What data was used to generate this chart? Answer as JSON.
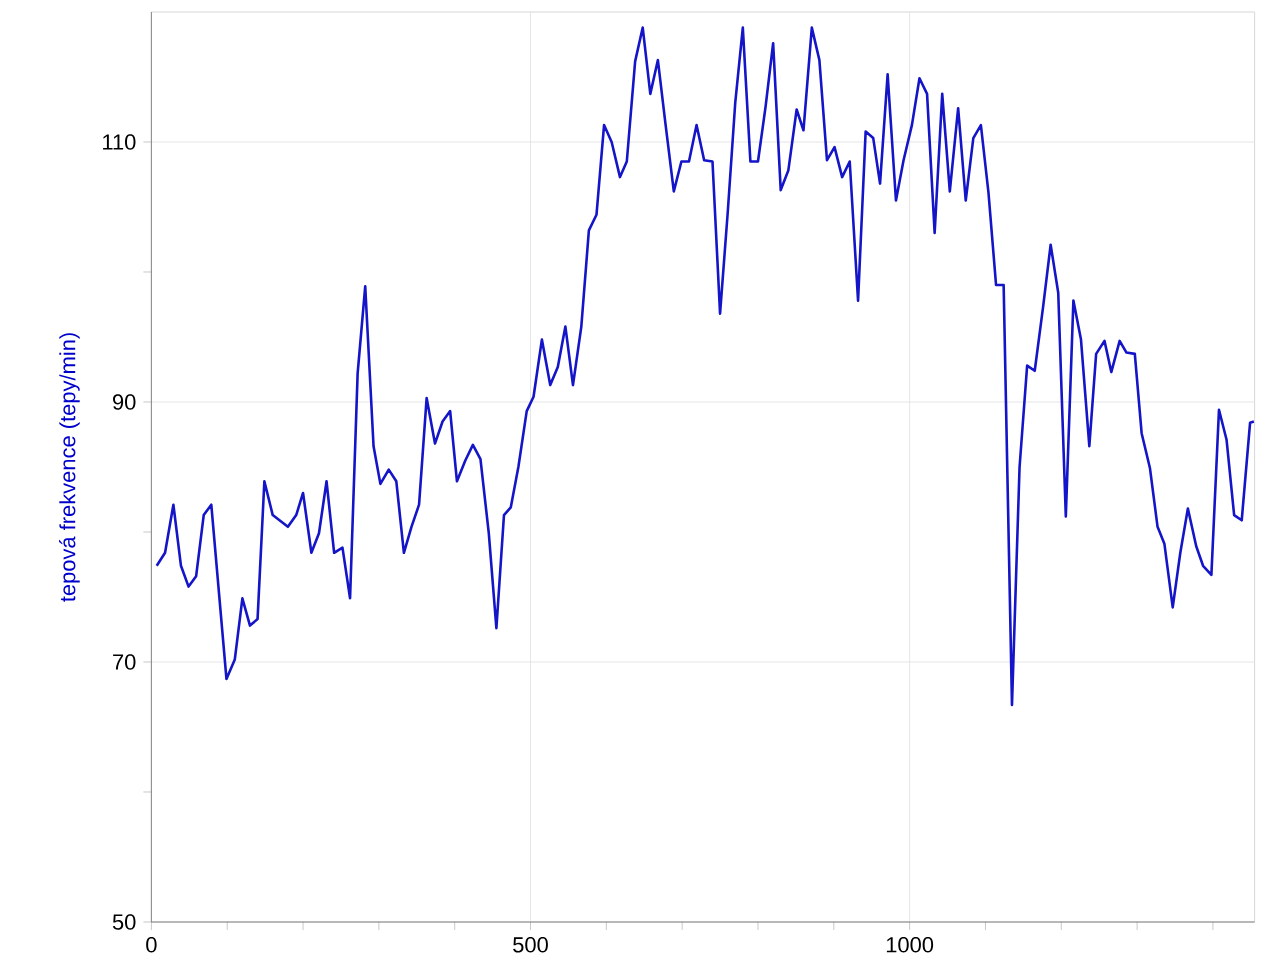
{
  "chart_data": {
    "type": "line",
    "ylabel": "tepová frekvence (tepy/min)",
    "color": "#1414c8",
    "grid": true,
    "marker": "none",
    "line_style": "solid",
    "xlim": [
      0,
      1455
    ],
    "ylim": [
      50,
      120
    ],
    "xticks": [
      0,
      {
        "value": 100,
        "label": null
      },
      {
        "value": 200,
        "label": null
      },
      {
        "value": 300,
        "label": null
      },
      {
        "value": 400,
        "label": null
      },
      500,
      {
        "value": 600,
        "label": null
      },
      {
        "value": 700,
        "label": null
      },
      {
        "value": 800,
        "label": null
      },
      {
        "value": 900,
        "label": null
      },
      1000,
      {
        "value": 1100,
        "label": null
      },
      {
        "value": 1200,
        "label": null
      },
      {
        "value": 1300,
        "label": null
      },
      {
        "value": 1400,
        "label": null
      }
    ],
    "yticks": [
      50,
      {
        "value": 60,
        "label": null
      },
      70,
      {
        "value": 80,
        "label": null
      },
      90,
      {
        "value": 100,
        "label": null
      },
      110
    ],
    "x": [
      7,
      18,
      29,
      39,
      49,
      59,
      69,
      79,
      99,
      110,
      120,
      130,
      140,
      149,
      160,
      180,
      191,
      200,
      211,
      221,
      231,
      241,
      252,
      262,
      272,
      282,
      293,
      302,
      313,
      323,
      333,
      343,
      353,
      363,
      374,
      384,
      394,
      403,
      414,
      424,
      434,
      445,
      455,
      465,
      474,
      484,
      495,
      504,
      515,
      526,
      536,
      546,
      556,
      567,
      577,
      587,
      597,
      607,
      618,
      627,
      638,
      648,
      658,
      668,
      678,
      689,
      699,
      709,
      719,
      729,
      740,
      750,
      760,
      770,
      780,
      790,
      800,
      810,
      820,
      830,
      840,
      851,
      860,
      871,
      881,
      891,
      901,
      911,
      921,
      932,
      942,
      952,
      961,
      971,
      982,
      992,
      1003,
      1013,
      1023,
      1033,
      1043,
      1053,
      1064,
      1074,
      1084,
      1094,
      1104,
      1114,
      1124,
      1135,
      1145,
      1155,
      1165,
      1176,
      1186,
      1196,
      1206,
      1216,
      1226,
      1237,
      1246,
      1257,
      1266,
      1277,
      1286,
      1297,
      1306,
      1317,
      1327,
      1336,
      1347,
      1357,
      1367,
      1378,
      1387,
      1398,
      1408,
      1418,
      1428,
      1438,
      1449,
      1454
    ],
    "values": [
      77.4,
      78.4,
      82.1,
      77.4,
      75.8,
      76.6,
      81.3,
      82.1,
      68.7,
      70.2,
      74.9,
      72.8,
      73.3,
      83.9,
      81.3,
      80.4,
      81.3,
      83.0,
      78.4,
      79.9,
      83.9,
      78.4,
      78.8,
      74.9,
      92.2,
      98.9,
      86.6,
      83.7,
      84.8,
      83.9,
      78.4,
      80.4,
      82.1,
      90.3,
      86.8,
      88.5,
      89.3,
      83.9,
      85.5,
      86.7,
      85.6,
      79.9,
      72.6,
      81.3,
      81.9,
      85.0,
      89.3,
      90.4,
      94.8,
      91.3,
      92.7,
      95.8,
      91.3,
      95.8,
      103.2,
      104.4,
      111.3,
      110.0,
      107.3,
      108.5,
      116.2,
      118.8,
      113.7,
      116.3,
      111.4,
      106.2,
      108.5,
      108.5,
      111.3,
      108.6,
      108.5,
      96.8,
      104.5,
      113.0,
      118.8,
      108.5,
      108.5,
      112.7,
      117.6,
      106.3,
      107.8,
      112.5,
      110.9,
      118.8,
      116.3,
      108.6,
      109.6,
      107.3,
      108.5,
      97.8,
      110.8,
      110.3,
      106.8,
      115.2,
      105.5,
      108.6,
      111.3,
      114.9,
      113.7,
      103.0,
      113.7,
      106.2,
      112.6,
      105.5,
      110.3,
      111.3,
      106.1,
      99.0,
      99.0,
      66.7,
      85.0,
      92.8,
      92.4,
      97.3,
      102.1,
      98.4,
      81.2,
      97.8,
      94.8,
      86.6,
      93.7,
      94.7,
      92.3,
      94.7,
      93.8,
      93.7,
      87.6,
      84.9,
      80.4,
      79.1,
      74.2,
      78.4,
      81.8,
      78.9,
      77.4,
      76.7,
      89.4,
      87.1,
      81.3,
      80.9,
      88.4,
      88.5
    ]
  }
}
